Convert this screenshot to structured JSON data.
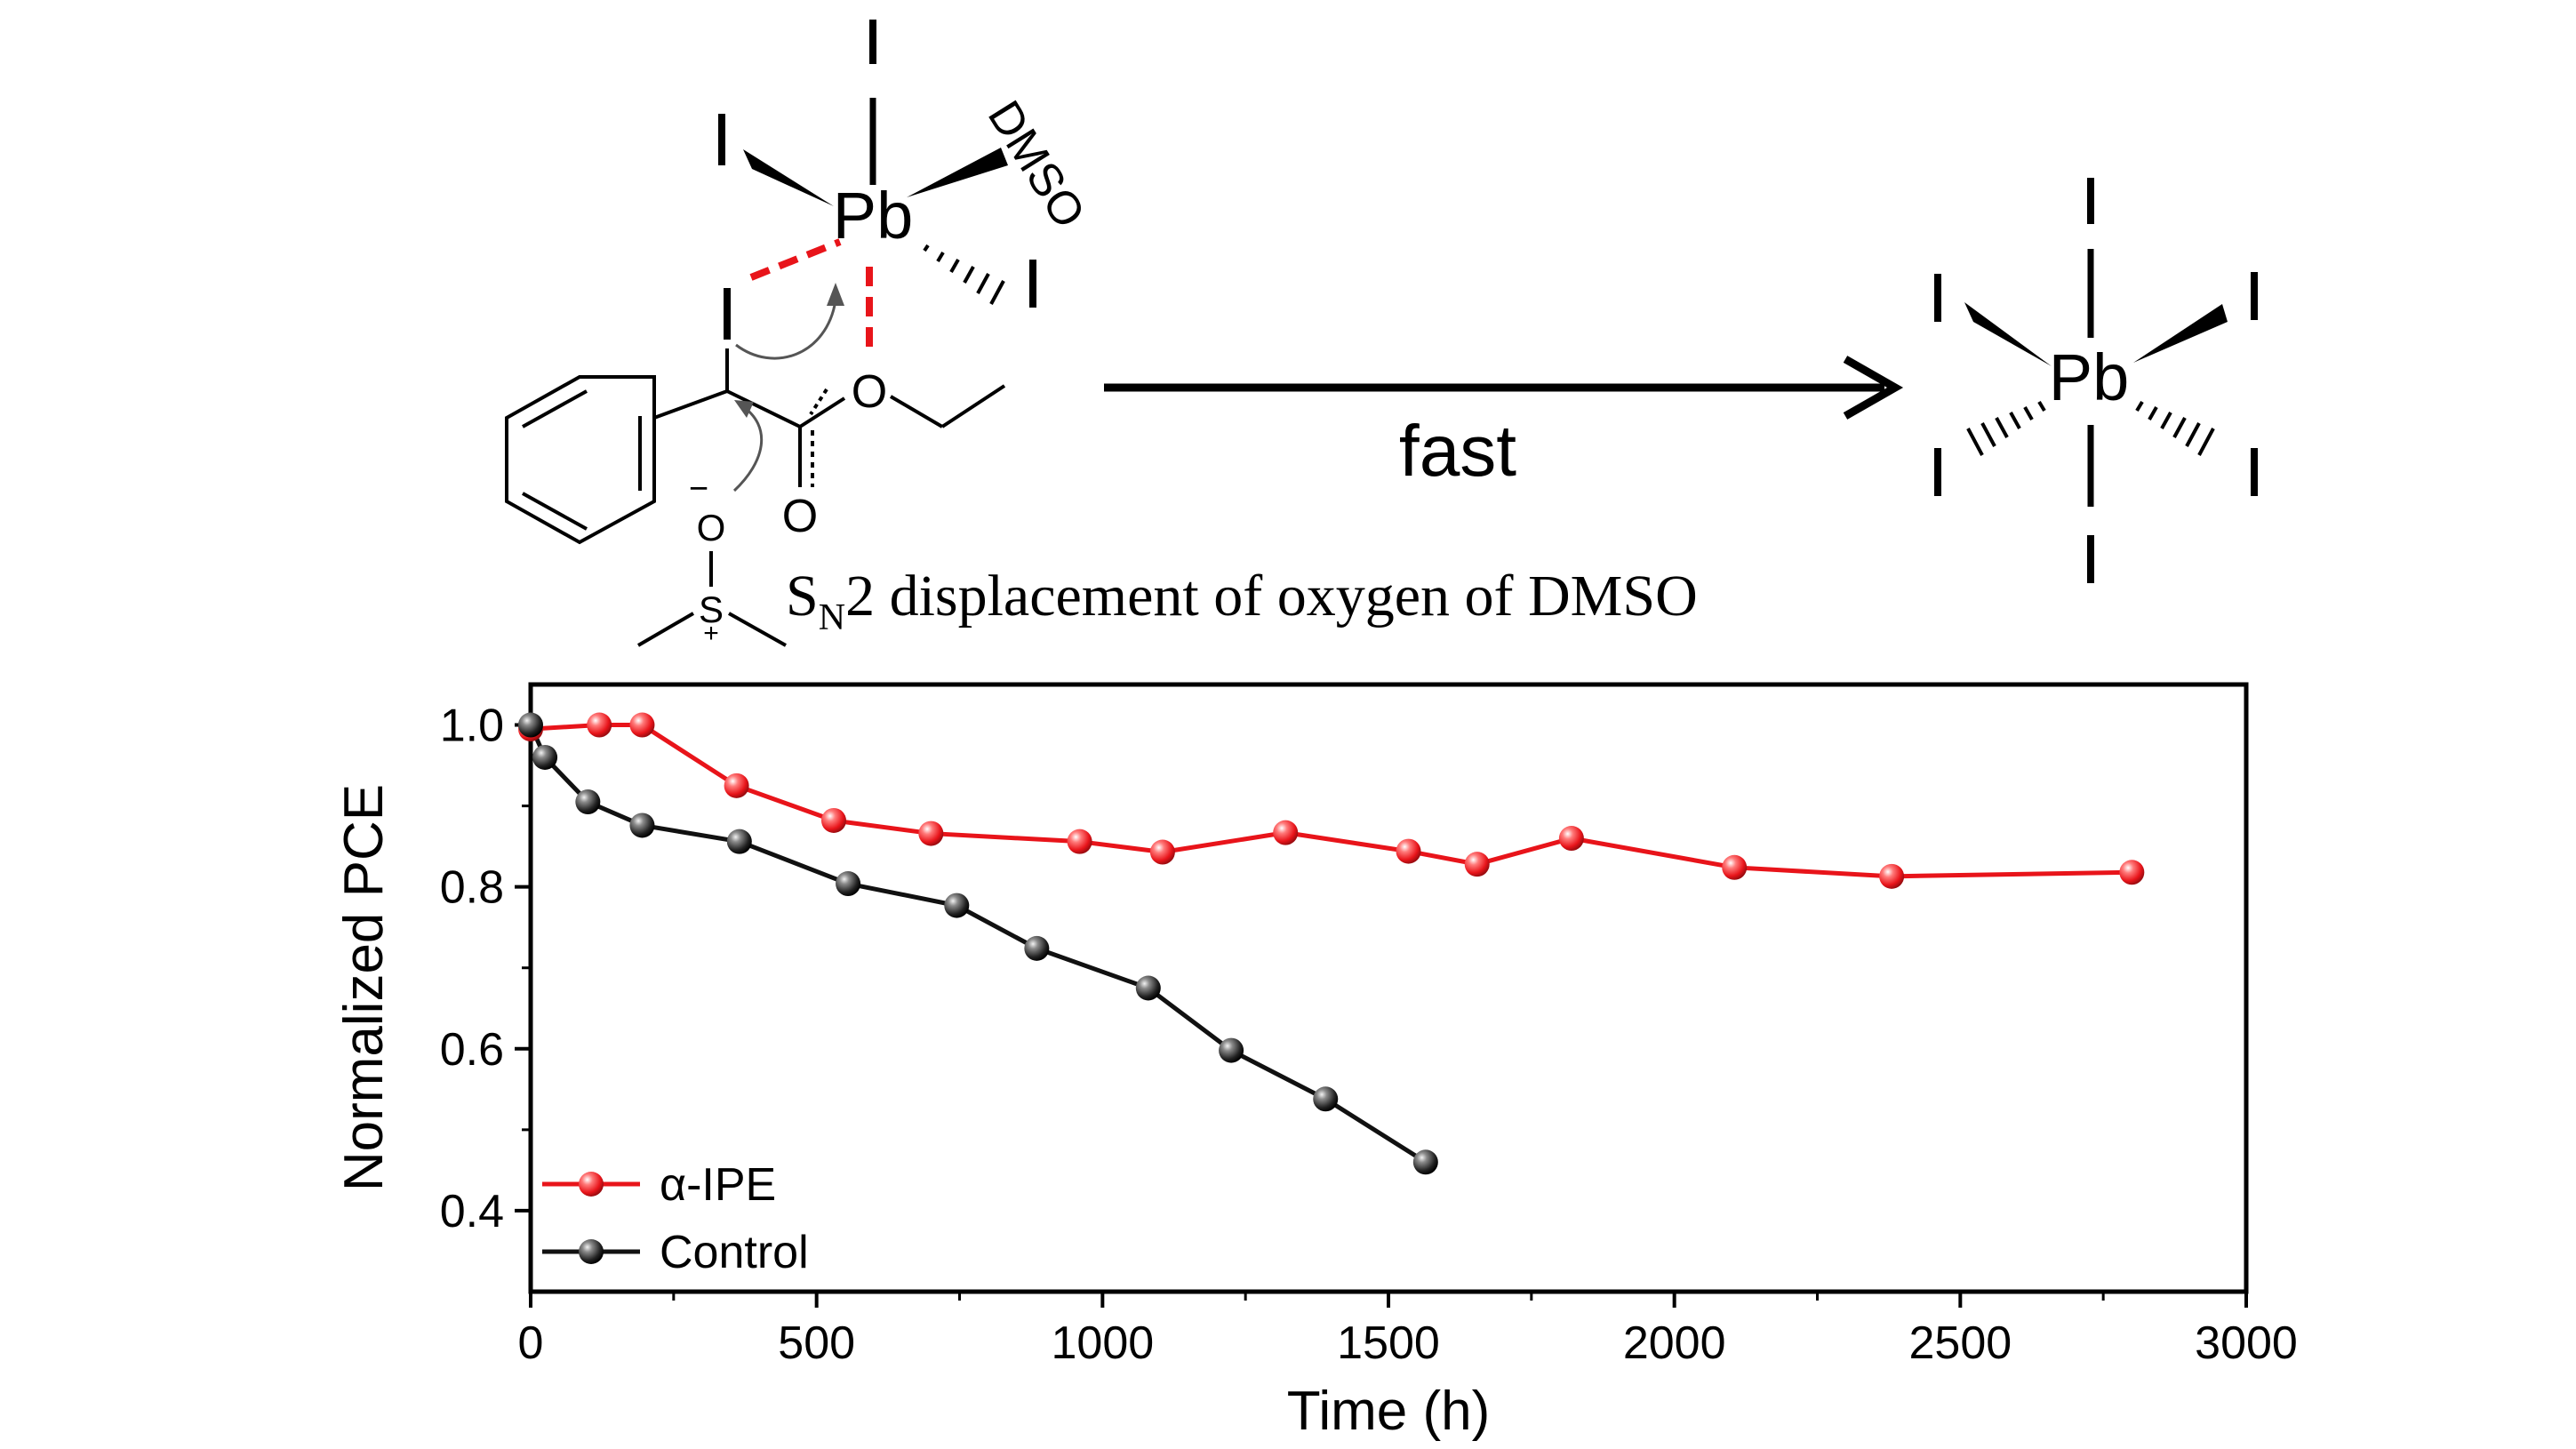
{
  "scheme": {
    "pb_label": "Pb",
    "iodide_label": "I",
    "dmso_label": "DMSO",
    "oxygen_label": "O",
    "sulfur_label": "S",
    "minus_charge": "−",
    "plus_charge": "+",
    "arrow_label": "fast",
    "caption_s": "S",
    "caption_sub": "N",
    "caption_rest": "2 displacement of oxygen of DMSO"
  },
  "colors": {
    "alpha_ipe": "#e8141a",
    "control": "#111111",
    "interaction": "#e8141a"
  },
  "chart_data": {
    "type": "line",
    "xlabel": "Time (h)",
    "ylabel": "Normalized PCE",
    "xlim": [
      0,
      3000
    ],
    "ylim": [
      0.3,
      1.05
    ],
    "xticks": [
      0,
      500,
      1000,
      1500,
      2000,
      2500,
      3000
    ],
    "yticks": [
      0.4,
      0.6,
      0.8,
      1.0
    ],
    "xtick_labels": [
      "0",
      "500",
      "1000",
      "1500",
      "2000",
      "2500",
      "3000"
    ],
    "ytick_labels": [
      "0.4",
      "0.6",
      "0.8",
      "1.0"
    ],
    "legend_position": "bottom-left",
    "series": [
      {
        "name": "α-IPE",
        "color": "#e8141a",
        "x": [
          0,
          120,
          195,
          360,
          530,
          700,
          960,
          1105,
          1320,
          1535,
          1655,
          1820,
          2105,
          2380,
          2800
        ],
        "y": [
          0.995,
          1.0,
          1.0,
          0.925,
          0.882,
          0.866,
          0.856,
          0.843,
          0.867,
          0.844,
          0.828,
          0.86,
          0.824,
          0.813,
          0.818
        ]
      },
      {
        "name": "Control",
        "color": "#111111",
        "x": [
          0,
          25,
          100,
          195,
          365,
          555,
          745,
          885,
          1080,
          1225,
          1390,
          1565
        ],
        "y": [
          1.0,
          0.96,
          0.905,
          0.876,
          0.856,
          0.804,
          0.777,
          0.724,
          0.675,
          0.598,
          0.538,
          0.46
        ]
      }
    ]
  }
}
